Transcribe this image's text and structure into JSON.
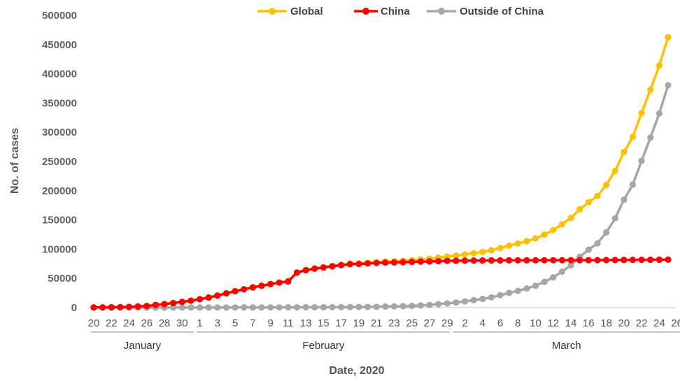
{
  "chart_data": {
    "type": "line",
    "xlabel": "Date, 2020",
    "ylabel": "No. of cases",
    "ylim": [
      0,
      500000
    ],
    "yticks": [
      0,
      50000,
      100000,
      150000,
      200000,
      250000,
      300000,
      350000,
      400000,
      450000,
      500000
    ],
    "grid": false,
    "legend": "top",
    "x_tick_labels": [
      "20",
      "22",
      "24",
      "26",
      "28",
      "30",
      "1",
      "3",
      "5",
      "7",
      "9",
      "11",
      "13",
      "15",
      "17",
      "19",
      "21",
      "23",
      "25",
      "27",
      "29",
      "2",
      "4",
      "6",
      "8",
      "10",
      "12",
      "14",
      "16",
      "18",
      "20",
      "22",
      "24",
      "26"
    ],
    "x_tick_step": 2,
    "months": [
      {
        "name": "January",
        "start_index": 0,
        "end_index": 11
      },
      {
        "name": "February",
        "start_index": 12,
        "end_index": 40
      },
      {
        "name": "March",
        "start_index": 41,
        "end_index": 66
      }
    ],
    "series": [
      {
        "name": "Global",
        "color": "#FFC000",
        "values": [
          282,
          314,
          581,
          846,
          1320,
          2014,
          2798,
          4593,
          6065,
          7818,
          9826,
          11953,
          14557,
          17391,
          20630,
          24554,
          28276,
          31481,
          34886,
          37558,
          40554,
          43103,
          45171,
          60328,
          64543,
          67100,
          69197,
          71329,
          73332,
          75204,
          75748,
          76769,
          77794,
          78811,
          79331,
          80239,
          81109,
          82294,
          83652,
          85403,
          87137,
          88948,
          90869,
          93091,
          95324,
          98192,
          102009,
          106003,
          109577,
          113702,
          118319,
          124973,
          132565,
          142646,
          153478,
          168019,
          180159,
          191127,
          209839,
          234073,
          266073,
          292142,
          332930,
          372757,
          414179,
          462684
        ]
      },
      {
        "name": "China",
        "color": "#FF0000",
        "values": [
          278,
          309,
          571,
          830,
          1297,
          1985,
          2761,
          4537,
          5997,
          7736,
          9720,
          11821,
          14411,
          17238,
          20471,
          24363,
          28060,
          31211,
          34598,
          37251,
          40235,
          42708,
          44730,
          59882,
          63932,
          66576,
          68584,
          70635,
          72528,
          74280,
          74675,
          75569,
          76392,
          77042,
          77262,
          77780,
          78191,
          78630,
          78961,
          79394,
          79968,
          80174,
          80304,
          80422,
          80565,
          80711,
          80813,
          80859,
          80904,
          80924,
          80955,
          80981,
          80991,
          81021,
          81048,
          81077,
          81116,
          81174,
          81300,
          81416,
          81498,
          81603,
          81747,
          81846,
          81960,
          82078
        ]
      },
      {
        "name": "Outside of China",
        "color": "#A6A6A6",
        "values": [
          4,
          5,
          10,
          16,
          23,
          29,
          37,
          56,
          68,
          82,
          106,
          132,
          146,
          153,
          159,
          191,
          216,
          270,
          288,
          307,
          319,
          395,
          441,
          446,
          611,
          524,
          613,
          694,
          804,
          924,
          1073,
          1200,
          1402,
          1769,
          2069,
          2459,
          2918,
          3664,
          4691,
          6009,
          7169,
          8774,
          10565,
          12669,
          14759,
          17481,
          21196,
          25144,
          28673,
          32778,
          37364,
          43992,
          51574,
          61625,
          72430,
          86942,
          99043,
          109953,
          128539,
          152657,
          184575,
          210539,
          251183,
          290911,
          332219,
          380606
        ]
      }
    ]
  }
}
